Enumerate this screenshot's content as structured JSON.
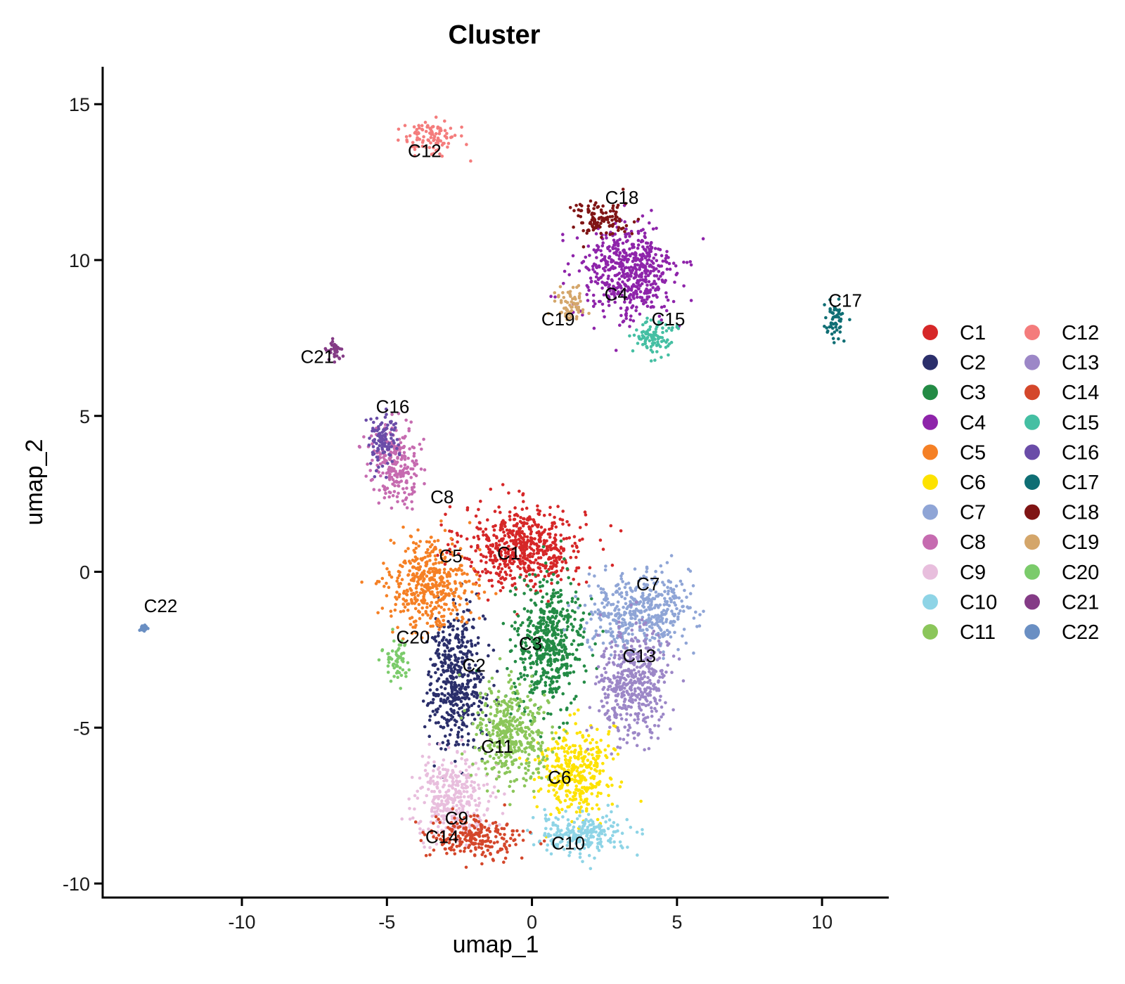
{
  "chart_data": {
    "type": "scatter",
    "title": "Cluster",
    "xlabel": "umap_1",
    "ylabel": "umap_2",
    "xlim": [
      -14.8,
      12.3
    ],
    "ylim": [
      -10.45,
      16.2
    ],
    "x_ticks": [
      -10,
      -5,
      0,
      5,
      10
    ],
    "y_ticks": [
      -10,
      -5,
      0,
      5,
      10,
      15
    ],
    "x_tick_labels": [
      "-10",
      "-5",
      "0",
      "5",
      "10"
    ],
    "y_tick_labels": [
      "-10",
      "-5",
      "0",
      "5",
      "10",
      "15"
    ],
    "legend_position": "right",
    "grid": false,
    "series": [
      {
        "name": "C1",
        "color": "#D62728",
        "label_at": [
          -0.8,
          0.4
        ],
        "center": [
          -0.3,
          0.8
        ],
        "spread": [
          1.9,
          1.2
        ]
      },
      {
        "name": "C2",
        "color": "#2B2F6B",
        "label_at": [
          -2.0,
          -3.2
        ],
        "center": [
          -2.6,
          -3.5
        ],
        "spread": [
          0.9,
          2.0
        ]
      },
      {
        "name": "C3",
        "color": "#238B45",
        "label_at": [
          -0.05,
          -2.5
        ],
        "center": [
          0.6,
          -2.3
        ],
        "spread": [
          1.1,
          1.8
        ]
      },
      {
        "name": "C4",
        "color": "#8E24AA",
        "label_at": [
          2.9,
          8.7
        ],
        "center": [
          3.3,
          9.6
        ],
        "spread": [
          1.5,
          1.4
        ]
      },
      {
        "name": "C5",
        "color": "#F58025",
        "label_at": [
          -2.8,
          0.3
        ],
        "center": [
          -3.5,
          -0.4
        ],
        "spread": [
          1.3,
          1.3
        ]
      },
      {
        "name": "C6",
        "color": "#FDE200",
        "label_at": [
          0.95,
          -6.8
        ],
        "center": [
          1.5,
          -6.4
        ],
        "spread": [
          1.1,
          1.3
        ]
      },
      {
        "name": "C7",
        "color": "#8FA5D6",
        "label_at": [
          4.0,
          -0.6
        ],
        "center": [
          3.7,
          -1.3
        ],
        "spread": [
          1.6,
          1.1
        ]
      },
      {
        "name": "C8",
        "color": "#C66BB0",
        "label_at": [
          -3.1,
          2.2
        ],
        "center": [
          -4.7,
          3.5
        ],
        "spread": [
          0.8,
          1.1
        ]
      },
      {
        "name": "C9",
        "color": "#E8BEDD",
        "label_at": [
          -2.6,
          -8.1
        ],
        "center": [
          -2.7,
          -7.2
        ],
        "spread": [
          1.2,
          1.1
        ]
      },
      {
        "name": "C10",
        "color": "#8ED4E6",
        "label_at": [
          1.25,
          -8.9
        ],
        "center": [
          1.7,
          -8.4
        ],
        "spread": [
          1.5,
          0.6
        ]
      },
      {
        "name": "C11",
        "color": "#8BC65A",
        "label_at": [
          -1.2,
          -5.8
        ],
        "center": [
          -0.7,
          -5.2
        ],
        "spread": [
          1.1,
          1.4
        ]
      },
      {
        "name": "C12",
        "color": "#F47C7C",
        "label_at": [
          -3.7,
          13.3
        ],
        "center": [
          -3.5,
          13.9
        ],
        "spread": [
          0.8,
          0.5
        ]
      },
      {
        "name": "C13",
        "color": "#9C87C7",
        "label_at": [
          3.7,
          -2.9
        ],
        "center": [
          3.5,
          -3.6
        ],
        "spread": [
          1.1,
          1.6
        ]
      },
      {
        "name": "C14",
        "color": "#D4472B",
        "label_at": [
          -3.1,
          -8.7
        ],
        "center": [
          -2.0,
          -8.5
        ],
        "spread": [
          1.5,
          0.6
        ]
      },
      {
        "name": "C15",
        "color": "#45BFA3",
        "label_at": [
          4.7,
          7.9
        ],
        "center": [
          4.2,
          7.5
        ],
        "spread": [
          0.6,
          0.6
        ]
      },
      {
        "name": "C16",
        "color": "#6A4CA8",
        "label_at": [
          -4.8,
          5.1
        ],
        "center": [
          -5.2,
          4.2
        ],
        "spread": [
          0.5,
          0.8
        ]
      },
      {
        "name": "C17",
        "color": "#0F6E74",
        "label_at": [
          10.8,
          8.5
        ],
        "center": [
          10.4,
          8.0
        ],
        "spread": [
          0.35,
          0.6
        ]
      },
      {
        "name": "C18",
        "color": "#7F1414",
        "label_at": [
          3.1,
          11.8
        ],
        "center": [
          2.4,
          11.3
        ],
        "spread": [
          0.9,
          0.5
        ]
      },
      {
        "name": "C19",
        "color": "#D4A66A",
        "label_at": [
          0.9,
          7.9
        ],
        "center": [
          1.3,
          8.5
        ],
        "spread": [
          0.5,
          0.5
        ]
      },
      {
        "name": "C20",
        "color": "#7BCB6B",
        "label_at": [
          -4.1,
          -2.3
        ],
        "center": [
          -4.7,
          -2.9
        ],
        "spread": [
          0.4,
          0.6
        ]
      },
      {
        "name": "C21",
        "color": "#843B86",
        "label_at": [
          -7.4,
          6.7
        ],
        "center": [
          -6.8,
          7.1
        ],
        "spread": [
          0.2,
          0.35
        ]
      },
      {
        "name": "C22",
        "color": "#6A8FC3",
        "label_at": [
          -12.8,
          -1.3
        ],
        "center": [
          -13.4,
          -1.8
        ],
        "spread": [
          0.1,
          0.1
        ]
      }
    ]
  }
}
